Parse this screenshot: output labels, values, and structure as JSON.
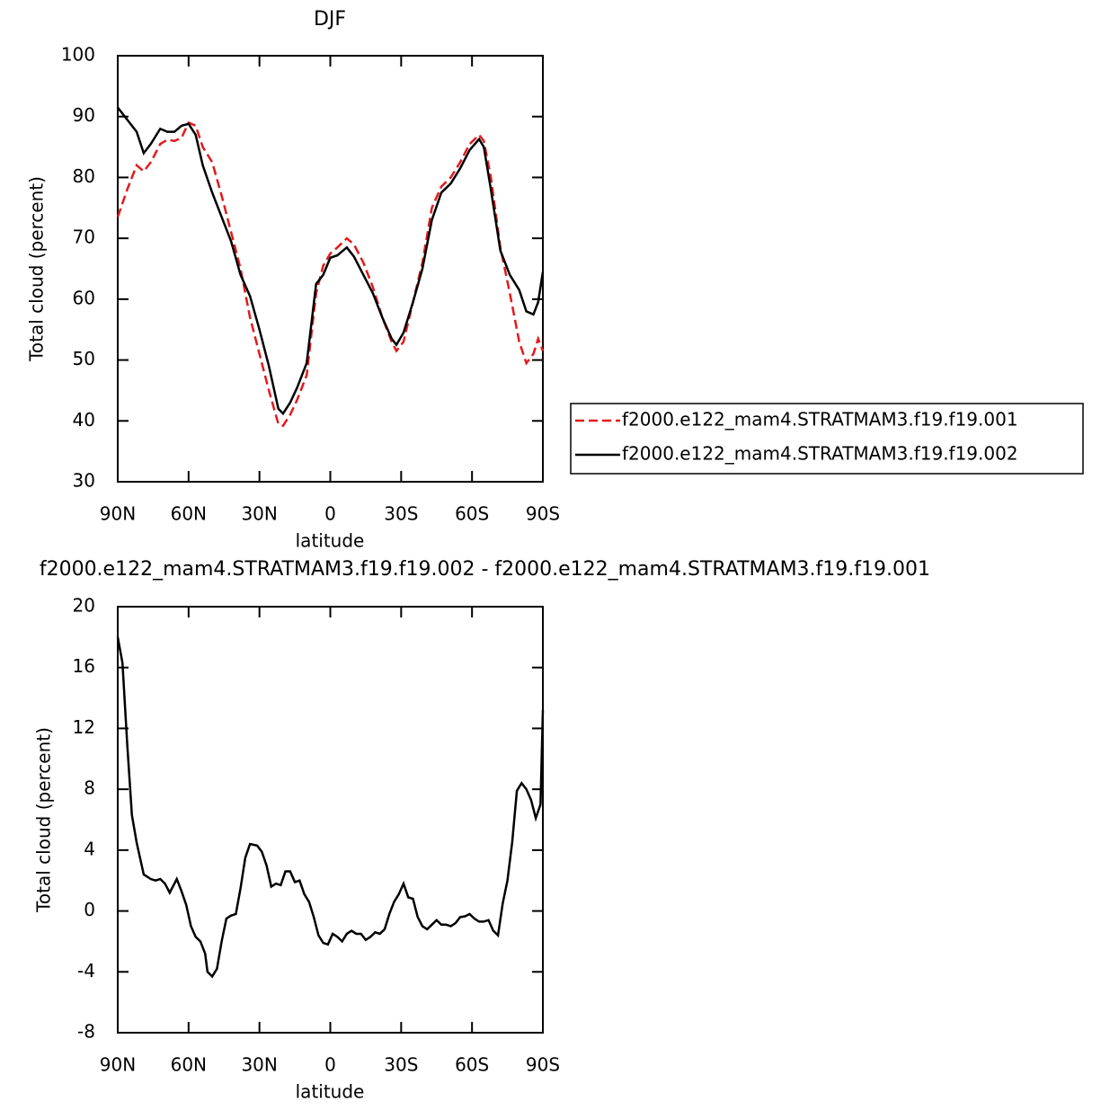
{
  "chart_data": [
    {
      "type": "line",
      "title": "DJF",
      "xlabel": "latitude",
      "ylabel": "Total cloud (percent)",
      "x": [
        90,
        86,
        82,
        79,
        76,
        72,
        69,
        66,
        63,
        60,
        57,
        54,
        50,
        46,
        42,
        38,
        34,
        30,
        26,
        22,
        20,
        17,
        14,
        10,
        6,
        3,
        0,
        -3,
        -7,
        -10,
        -14,
        -18,
        -22,
        -26,
        -28,
        -31,
        -35,
        -39,
        -43,
        -47,
        -51,
        -55,
        -59,
        -63,
        -65,
        -68,
        -72,
        -76,
        -80,
        -83,
        -86,
        -88,
        -90
      ],
      "series": [
        {
          "name": "f2000.e122_mam4.STRATMAM3.f19.f19.001",
          "color": "#e41a1c",
          "line_style": "dashed",
          "values": [
            73.5,
            78,
            82,
            81,
            82.5,
            85.5,
            86.2,
            86,
            86.5,
            89,
            88.5,
            85,
            82.5,
            77,
            71,
            65,
            57,
            51,
            45,
            39.5,
            39.2,
            41,
            43.5,
            47.5,
            61,
            65.5,
            67.5,
            68.5,
            70,
            69,
            66,
            62,
            57,
            53,
            51.5,
            53,
            59.5,
            66,
            75,
            78.5,
            80,
            82.5,
            85.5,
            87,
            86,
            80,
            68.5,
            61,
            53,
            49.5,
            51,
            53.5,
            51.5
          ]
        },
        {
          "name": "f2000.e122_mam4.STRATMAM3.f19.f19.002",
          "color": "#000000",
          "line_style": "solid",
          "values": [
            91.5,
            89.5,
            87.5,
            84,
            85.5,
            88,
            87.5,
            87.5,
            88.5,
            88.8,
            87,
            82,
            77.5,
            73.5,
            69.5,
            64,
            60.5,
            55,
            49,
            42,
            41.2,
            43,
            45.5,
            49.5,
            62.5,
            64,
            66.8,
            67.2,
            68.5,
            67,
            64,
            61,
            57,
            53.5,
            52.5,
            54.5,
            59.5,
            65,
            73,
            77.5,
            79,
            81.5,
            84.5,
            86.3,
            85,
            78,
            68,
            64,
            61.5,
            58,
            57.5,
            59.5,
            64.5
          ]
        }
      ],
      "xlim": [
        90,
        -90
      ],
      "xticks": [
        {
          "value": 90,
          "label": "90N"
        },
        {
          "value": 60,
          "label": "60N"
        },
        {
          "value": 30,
          "label": "30N"
        },
        0,
        {
          "value": -30,
          "label": "30S"
        },
        {
          "value": -60,
          "label": "60S"
        },
        {
          "value": -90,
          "label": "90S"
        }
      ],
      "ylim": [
        30,
        100
      ],
      "yticks": [
        30,
        40,
        50,
        60,
        70,
        80,
        90,
        100
      ],
      "legend": "right"
    },
    {
      "type": "line",
      "title": "f2000.e122_mam4.STRATMAM3.f19.f19.002 - f2000.e122_mam4.STRATMAM3.f19.f19.001",
      "xlabel": "latitude",
      "ylabel": "Total cloud (percent)",
      "x": [
        90,
        88,
        86,
        84,
        82,
        79,
        76,
        74,
        72,
        70,
        68,
        65,
        63,
        61,
        59,
        57,
        55,
        53,
        52,
        50,
        48,
        46,
        44,
        42,
        40,
        38,
        36,
        34,
        31,
        29,
        27,
        25,
        23,
        21,
        19,
        17,
        15,
        13,
        11,
        9,
        7,
        5,
        3,
        1,
        -1,
        -3,
        -5,
        -7,
        -9,
        -11,
        -13,
        -15,
        -17,
        -19,
        -21,
        -23,
        -25,
        -27,
        -29,
        -31,
        -33,
        -35,
        -37,
        -39,
        -41,
        -43,
        -45,
        -47,
        -49,
        -51,
        -53,
        -55,
        -57,
        -59,
        -61,
        -63,
        -65,
        -67,
        -69,
        -71,
        -73,
        -75,
        -77,
        -79,
        -81,
        -83,
        -85,
        -87,
        -89,
        -90
      ],
      "values": [
        18,
        16.3,
        11,
        6.3,
        4.5,
        2.4,
        2.1,
        2.0,
        2.1,
        1.8,
        1.2,
        2.1,
        1.3,
        0.4,
        -1.0,
        -1.7,
        -2.0,
        -2.8,
        -4.0,
        -4.3,
        -3.8,
        -2.0,
        -0.5,
        -0.3,
        -0.2,
        1.5,
        3.5,
        4.4,
        4.3,
        3.9,
        3.0,
        1.6,
        1.8,
        1.7,
        2.6,
        2.6,
        1.9,
        2.0,
        1.1,
        0.6,
        -0.4,
        -1.6,
        -2.1,
        -2.2,
        -1.5,
        -1.7,
        -2.0,
        -1.5,
        -1.3,
        -1.5,
        -1.5,
        -1.9,
        -1.7,
        -1.4,
        -1.5,
        -1.2,
        -0.2,
        0.6,
        1.1,
        1.8,
        0.9,
        0.8,
        -0.4,
        -1.0,
        -1.2,
        -0.9,
        -0.6,
        -0.9,
        -0.9,
        -1.0,
        -0.8,
        -0.4,
        -0.35,
        -0.2,
        -0.5,
        -0.7,
        -0.7,
        -0.6,
        -1.3,
        -1.6,
        0.5,
        2.0,
        4.5,
        7.9,
        8.4,
        8.0,
        7.3,
        6.1,
        7.0,
        13.2
      ],
      "color": "#000000",
      "line_style": "solid",
      "xlim": [
        90,
        -90
      ],
      "xticks": [
        {
          "value": 90,
          "label": "90N"
        },
        {
          "value": 60,
          "label": "60N"
        },
        {
          "value": 30,
          "label": "30N"
        },
        0,
        {
          "value": -30,
          "label": "30S"
        },
        {
          "value": -60,
          "label": "60S"
        },
        {
          "value": -90,
          "label": "90S"
        }
      ],
      "ylim": [
        -8,
        20
      ],
      "yticks": [
        -8,
        -4,
        0,
        4,
        8,
        12,
        16,
        20
      ]
    }
  ]
}
